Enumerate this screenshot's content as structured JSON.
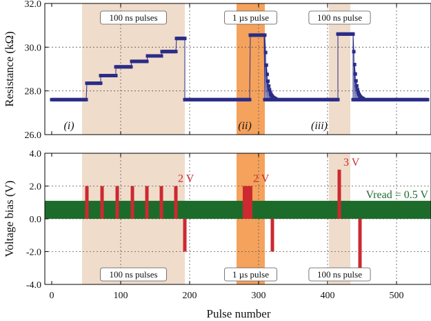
{
  "chart_data": [
    {
      "type": "scatter",
      "panel": "top",
      "ylabel": "Resistance (kΩ)",
      "xlabel": "",
      "xlim": [
        -10,
        550
      ],
      "ylim": [
        26.0,
        32.0
      ],
      "y_ticks": [
        26.0,
        28.0,
        30.0,
        32.0
      ],
      "y_tick_labels": [
        "26.0",
        "28.0",
        "30.0",
        "32.0"
      ],
      "x_ticks": [
        0,
        100,
        200,
        300,
        400,
        500
      ],
      "grid": true,
      "marker_color": "#2a2d86",
      "shaded_regions": [
        {
          "x0": 44,
          "x1": 193,
          "color": "#f0dccb",
          "label": "100 ns pulses"
        },
        {
          "x0": 268,
          "x1": 309,
          "color": "#f5a25d",
          "label": "1 µs pulse"
        },
        {
          "x0": 402,
          "x1": 433,
          "color": "#f0dccb",
          "label": "100 ns pulse"
        }
      ],
      "region_labels": [
        {
          "text": "(i)",
          "x": 25
        },
        {
          "text": "(ii)",
          "x": 280
        },
        {
          "text": "(iii)",
          "x": 388
        }
      ],
      "series": [
        {
          "name": "Resistance",
          "segments": [
            {
              "x0": 0,
              "x1": 51,
              "y": 27.6
            },
            {
              "x0": 51,
              "x1": 71,
              "y": 28.35
            },
            {
              "x0": 71,
              "x1": 93,
              "y": 28.7
            },
            {
              "x0": 93,
              "x1": 116,
              "y": 29.1
            },
            {
              "x0": 116,
              "x1": 139,
              "y": 29.35
            },
            {
              "x0": 139,
              "x1": 160,
              "y": 29.6
            },
            {
              "x0": 160,
              "x1": 181,
              "y": 29.8
            },
            {
              "x0": 181,
              "x1": 193,
              "y": 30.4
            },
            {
              "x0": 193,
              "x1": 288,
              "y": 27.6
            },
            {
              "x0": 288,
              "x1": 309,
              "y": 30.55
            },
            {
              "x0": 309,
              "x1": 415,
              "y": 27.6
            },
            {
              "x0": 415,
              "x1": 437,
              "y": 30.6
            },
            {
              "x0": 437,
              "x1": 545,
              "y": 27.6
            }
          ],
          "decays": [
            {
              "x0": 309,
              "x1": 325,
              "y_start": 30.55
            },
            {
              "x0": 437,
              "x1": 452,
              "y_start": 30.6
            }
          ]
        }
      ]
    },
    {
      "type": "bar",
      "panel": "bottom",
      "title": "",
      "xlabel": "Pulse number",
      "ylabel": "Voltage bias (V)",
      "xlim": [
        -10,
        550
      ],
      "ylim": [
        -4.0,
        4.0
      ],
      "y_ticks": [
        -4.0,
        -2.0,
        0.0,
        2.0,
        4.0
      ],
      "y_tick_labels": [
        "-4.0",
        "-2.0",
        "0.0",
        "2.0",
        "4.0"
      ],
      "x_ticks": [
        0,
        100,
        200,
        300,
        400,
        500
      ],
      "x_tick_labels": [
        "0",
        "100",
        "200",
        "300",
        "400",
        "500"
      ],
      "grid": true,
      "bar_color": "#cc2a30",
      "read_band": {
        "y0": 0.0,
        "y1": 1.1,
        "color": "#1d6b2b",
        "label": "Vread = 0.5 V"
      },
      "shaded_regions": [
        {
          "x0": 44,
          "x1": 193,
          "color": "#f0dccb",
          "label": "100 ns pulses"
        },
        {
          "x0": 268,
          "x1": 309,
          "color": "#f5a25d",
          "label": "1 µs pulse"
        },
        {
          "x0": 402,
          "x1": 433,
          "color": "#f0dccb",
          "label": "100 ns pulse"
        }
      ],
      "bars": [
        {
          "x": 51,
          "width": 5,
          "value": 2.0
        },
        {
          "x": 73,
          "width": 5,
          "value": 2.0
        },
        {
          "x": 95,
          "width": 5,
          "value": 2.0
        },
        {
          "x": 117,
          "width": 5,
          "value": 2.0
        },
        {
          "x": 138,
          "width": 5,
          "value": 2.0
        },
        {
          "x": 159,
          "width": 5,
          "value": 2.0
        },
        {
          "x": 180,
          "width": 5,
          "value": 2.0
        },
        {
          "x": 193,
          "width": 5,
          "value": -2.0
        },
        {
          "x": 284,
          "width": 14,
          "value": 2.0
        },
        {
          "x": 320,
          "width": 5,
          "value": -2.0
        },
        {
          "x": 417,
          "width": 5,
          "value": 3.0
        },
        {
          "x": 447,
          "width": 5,
          "value": -3.0
        }
      ],
      "annotations": [
        {
          "text": "2 V",
          "x": 183,
          "y": 2.25
        },
        {
          "text": "2 V",
          "x": 292,
          "y": 2.25
        },
        {
          "text": "3 V",
          "x": 423,
          "y": 3.25
        }
      ]
    }
  ]
}
